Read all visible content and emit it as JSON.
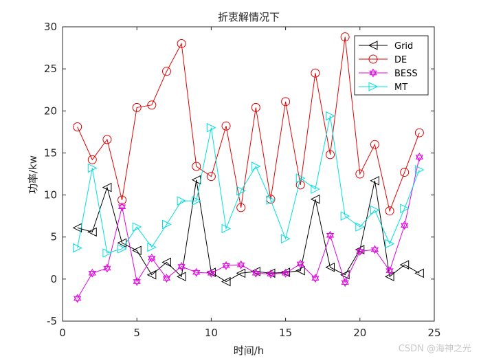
{
  "chart_data": {
    "type": "line",
    "title": "折衷解情况下",
    "xlabel": "时间/h",
    "ylabel": "功率/kw",
    "xlim": [
      0,
      25
    ],
    "ylim": [
      -5,
      30
    ],
    "xticks": [
      0,
      5,
      10,
      15,
      20,
      25
    ],
    "yticks": [
      -5,
      0,
      5,
      10,
      15,
      20,
      25,
      30
    ],
    "grid": false,
    "legend_position": "top-right",
    "x": [
      1,
      2,
      3,
      4,
      5,
      6,
      7,
      8,
      9,
      10,
      11,
      12,
      13,
      14,
      15,
      16,
      17,
      18,
      19,
      20,
      21,
      22,
      23,
      24
    ],
    "series": [
      {
        "name": "Grid",
        "color": "#000000",
        "marker": "triangle-left",
        "values": [
          6.1,
          5.6,
          10.9,
          4.3,
          3.4,
          0.5,
          2.0,
          0.3,
          11.8,
          0.8,
          -0.3,
          0.7,
          0.9,
          0.7,
          0.8,
          1.0,
          9.5,
          1.4,
          0.5,
          3.5,
          11.7,
          0.3,
          1.7,
          0.7
        ]
      },
      {
        "name": "DE",
        "color": "#e00000",
        "marker": "circle",
        "values": [
          18.1,
          14.2,
          16.6,
          9.4,
          20.4,
          20.7,
          24.7,
          28.0,
          13.4,
          12.2,
          18.2,
          8.5,
          20.4,
          9.5,
          21.1,
          11.2,
          24.5,
          14.8,
          28.8,
          12.5,
          16.0,
          8.1,
          12.7,
          17.4
        ]
      },
      {
        "name": "BESS",
        "color": "#e000e0",
        "marker": "hexagram",
        "values": [
          -2.3,
          0.7,
          1.3,
          8.6,
          -0.3,
          2.5,
          0.1,
          1.5,
          0.8,
          0.7,
          1.6,
          1.7,
          0.7,
          0.6,
          0.7,
          1.8,
          0.1,
          5.2,
          -0.4,
          3.3,
          3.5,
          1.0,
          6.4,
          14.5
        ]
      },
      {
        "name": "MT",
        "color": "#00e0e0",
        "marker": "triangle-right",
        "values": [
          3.7,
          13.2,
          3.1,
          3.6,
          6.2,
          3.8,
          6.5,
          9.3,
          9.3,
          18.0,
          6.0,
          10.5,
          13.4,
          9.4,
          4.8,
          12.0,
          10.7,
          19.4,
          7.5,
          6.2,
          8.2,
          4.2,
          8.4,
          13.0
        ]
      }
    ]
  },
  "watermark": "CSDN @海神之光"
}
